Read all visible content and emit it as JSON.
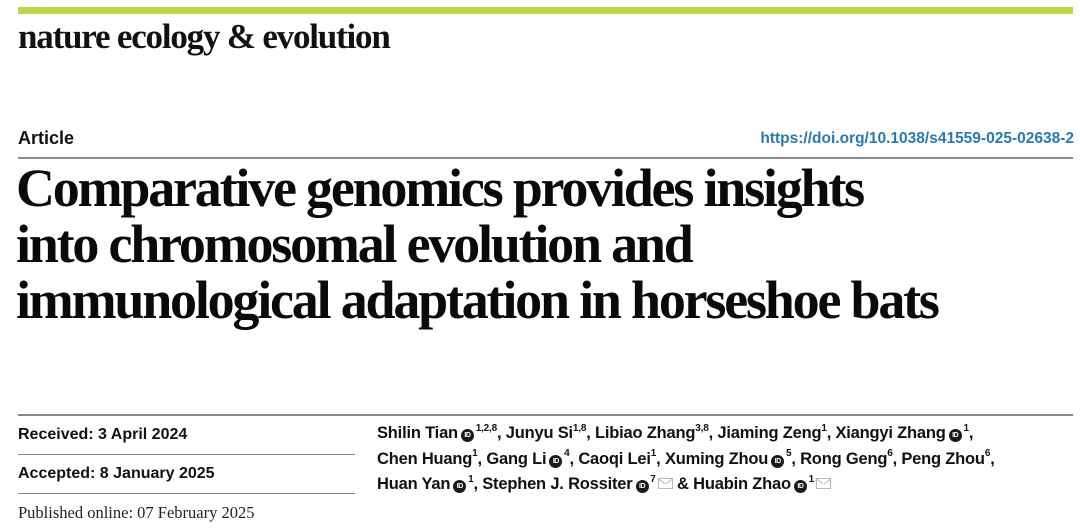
{
  "colors": {
    "accent_bar": "#bcd64a",
    "doi_link": "#2a78b0",
    "rule": "#8a8a8a"
  },
  "header": {
    "journal_name": "nature ecology & evolution"
  },
  "article": {
    "type": "Article",
    "doi": "https://doi.org/10.1038/s41559-025-02638-2",
    "title_lines": [
      "Comparative genomics provides insights",
      "into chromosomal evolution and",
      "immunological adaptation in horseshoe bats"
    ]
  },
  "dates": {
    "received": "Received: 3 April 2024",
    "accepted": "Accepted: 8 January 2025",
    "published": "Published online: 07 February 2025"
  },
  "authors": [
    {
      "name": "Shilin Tian",
      "orcid": true,
      "affil": "1,2,8",
      "sep": ", "
    },
    {
      "name": "Junyu Si",
      "orcid": false,
      "affil": "1,8",
      "sep": ", "
    },
    {
      "name": "Libiao Zhang",
      "orcid": false,
      "affil": "3,8",
      "sep": ", "
    },
    {
      "name": "Jiaming Zeng",
      "orcid": false,
      "affil": "1",
      "sep": ", "
    },
    {
      "name": "Xiangyi Zhang",
      "orcid": true,
      "affil": "1",
      "sep": ", "
    },
    {
      "name": "Chen Huang",
      "orcid": false,
      "affil": "1",
      "sep": ", "
    },
    {
      "name": "Gang Li",
      "orcid": true,
      "affil": "4",
      "sep": ", "
    },
    {
      "name": "Caoqi Lei",
      "orcid": false,
      "affil": "1",
      "sep": ", "
    },
    {
      "name": "Xuming Zhou",
      "orcid": true,
      "affil": "5",
      "sep": ", "
    },
    {
      "name": "Rong Geng",
      "orcid": false,
      "affil": "6",
      "sep": ", "
    },
    {
      "name": "Peng Zhou",
      "orcid": false,
      "affil": "6",
      "sep": ", "
    },
    {
      "name": "Huan Yan",
      "orcid": true,
      "affil": "1",
      "sep": ", "
    },
    {
      "name": "Stephen J. Rossiter",
      "orcid": true,
      "affil": "7",
      "corresponding": true,
      "sep": " & "
    },
    {
      "name": "Huabin Zhao",
      "orcid": true,
      "affil": "1",
      "corresponding": true,
      "sep": ""
    }
  ],
  "icons": {
    "orcid": "ID",
    "mail": "envelope-icon"
  }
}
